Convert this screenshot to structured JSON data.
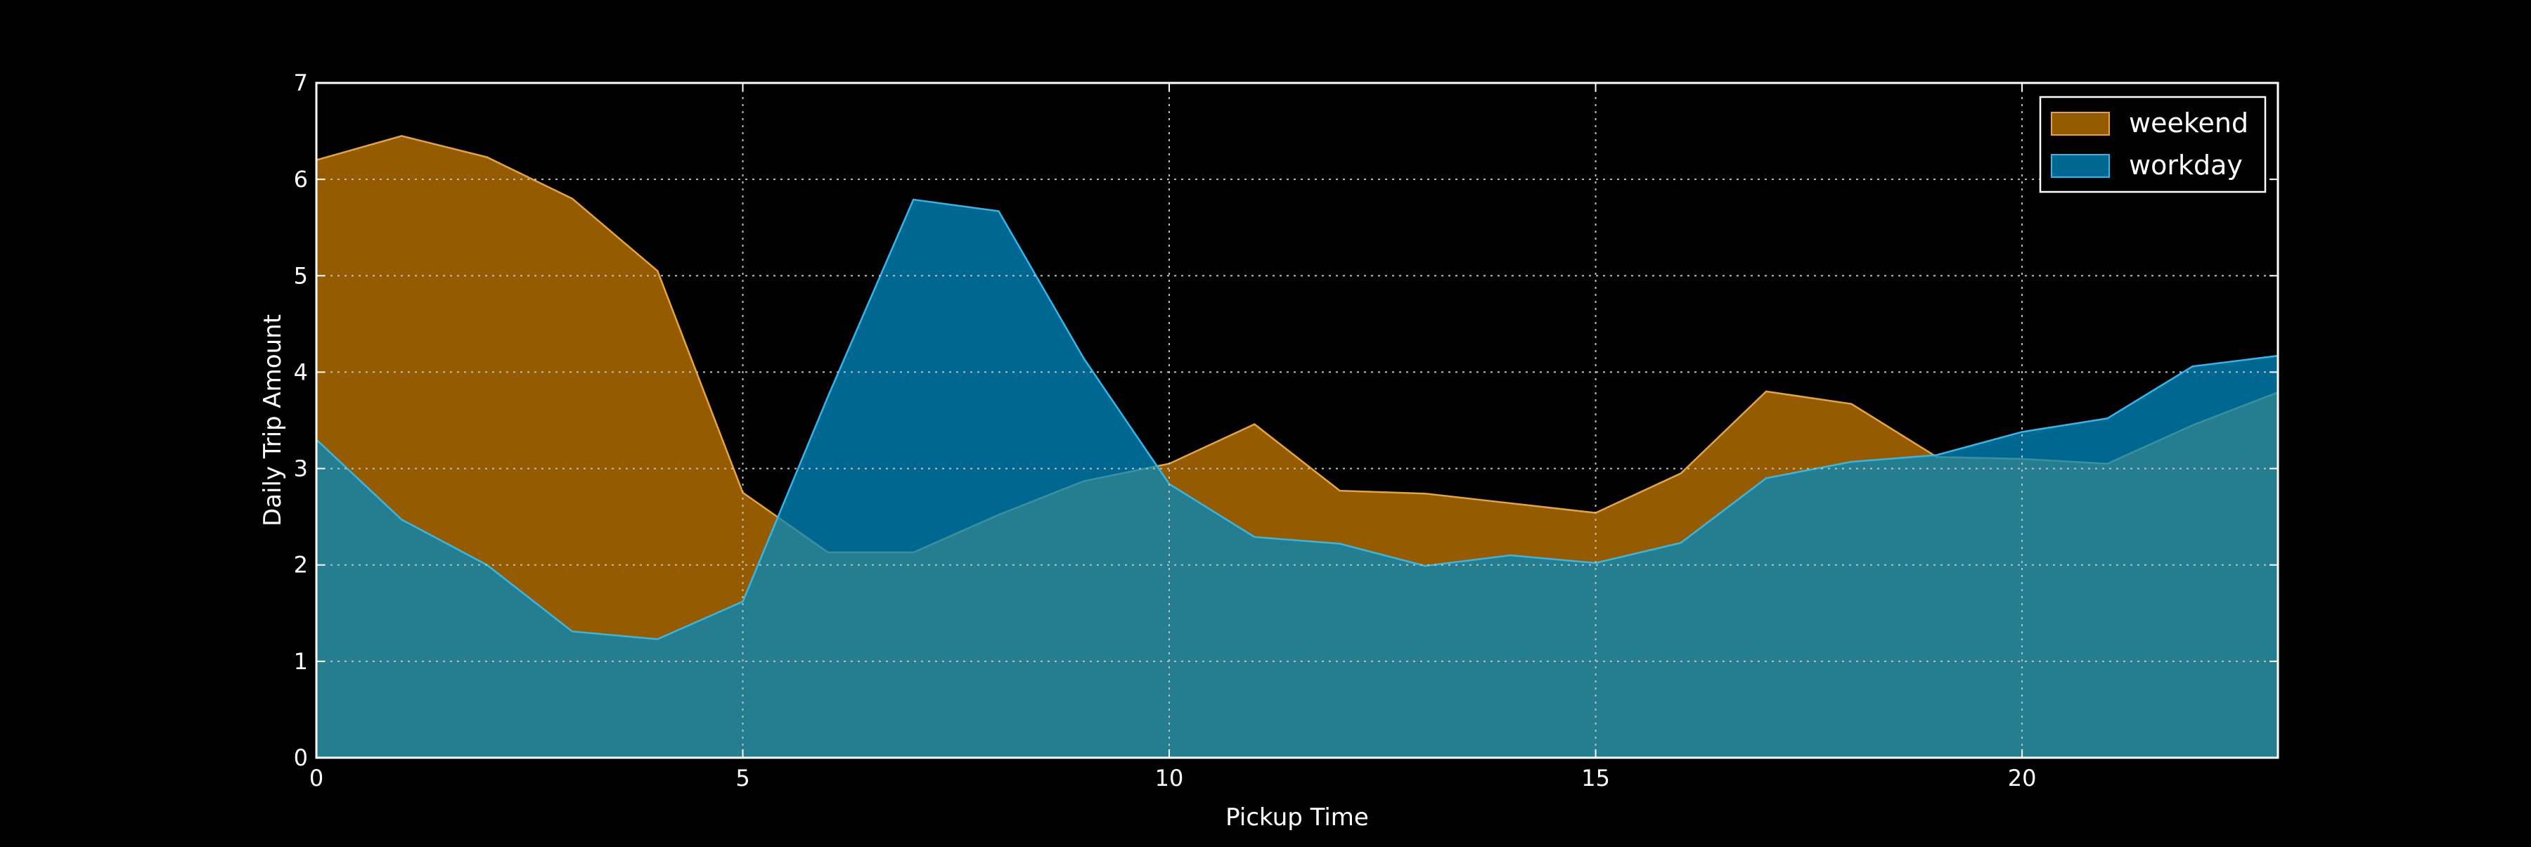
{
  "chart_data": {
    "type": "area",
    "xlabel": "Pickup Time",
    "ylabel": "Daily Trip Amount",
    "xlim": [
      0,
      23
    ],
    "ylim": [
      0,
      7
    ],
    "x_ticks": [
      "0",
      "5",
      "10",
      "15",
      "20"
    ],
    "y_ticks": [
      "0",
      "1",
      "2",
      "3",
      "4",
      "5",
      "6",
      "7"
    ],
    "grid": true,
    "legend_position": "top-right",
    "x": [
      0,
      1,
      2,
      3,
      4,
      5,
      6,
      7,
      8,
      9,
      10,
      11,
      12,
      13,
      14,
      15,
      16,
      17,
      18,
      19,
      20,
      21,
      22,
      23
    ],
    "series": [
      {
        "name": "weekend",
        "color": "#c57a00",
        "edge_color": "#e8a33a",
        "values": [
          6.2,
          6.45,
          6.23,
          5.8,
          5.05,
          2.75,
          2.13,
          2.13,
          2.52,
          2.87,
          3.05,
          3.46,
          2.77,
          2.74,
          2.64,
          2.54,
          2.95,
          3.8,
          3.67,
          3.12,
          3.1,
          3.05,
          3.45,
          3.79
        ]
      },
      {
        "name": "workday",
        "color": "#0089c0",
        "edge_color": "#2fb8ee",
        "values": [
          3.3,
          2.47,
          2.0,
          1.31,
          1.23,
          1.62,
          3.75,
          5.79,
          5.67,
          4.14,
          2.84,
          2.29,
          2.22,
          1.99,
          2.1,
          2.02,
          2.23,
          2.9,
          3.07,
          3.14,
          3.38,
          3.52,
          4.06,
          4.17
        ]
      }
    ]
  }
}
